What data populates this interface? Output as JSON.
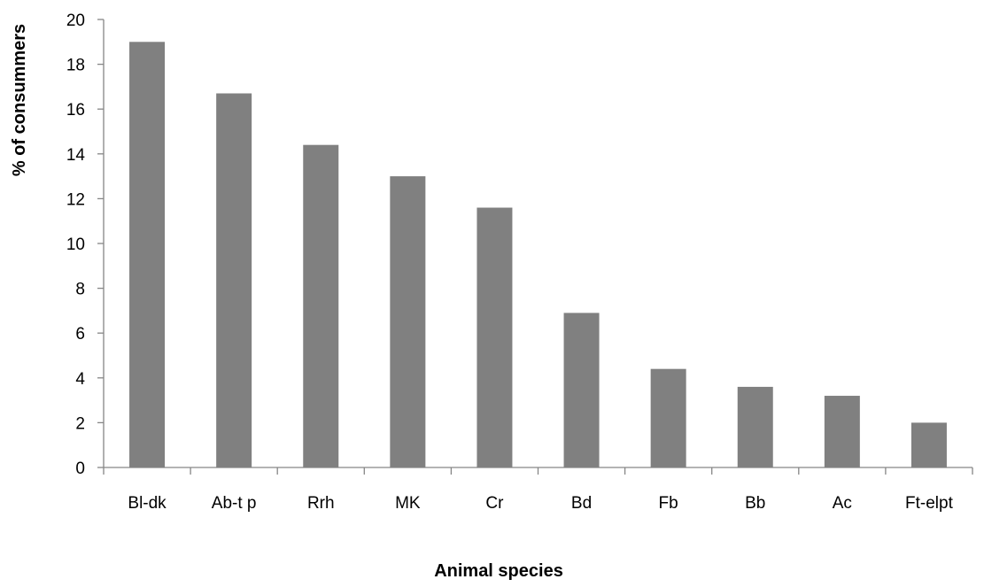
{
  "chart_data": {
    "type": "bar",
    "title": "",
    "xlabel": "Animal species",
    "ylabel": "% of consummers",
    "categories": [
      "Bl-dk",
      "Ab-t p",
      "Rrh",
      "MK",
      "Cr",
      "Bd",
      "Fb",
      "Bb",
      "Ac",
      "Ft-elpt"
    ],
    "values": [
      19.0,
      16.7,
      14.4,
      13.0,
      11.6,
      6.9,
      4.4,
      3.6,
      3.2,
      2.0
    ],
    "ylim": [
      0,
      20
    ],
    "yticks": [
      0,
      2,
      4,
      6,
      8,
      10,
      12,
      14,
      16,
      18,
      20
    ],
    "ytick_labels": [
      "0",
      "2",
      "4",
      "6",
      "8",
      "10",
      "12",
      "14",
      "16",
      "18",
      "20"
    ],
    "grid": false,
    "legend": "none",
    "bar_color": "#808080",
    "axis_color": "#868686"
  }
}
